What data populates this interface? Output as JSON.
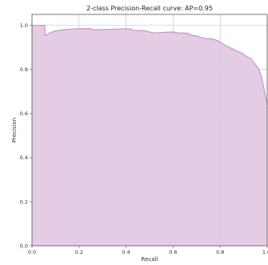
{
  "chart_data": {
    "type": "area",
    "title": "2-class Precision-Recall curve: AP=0.95",
    "xlabel": "Recall",
    "ylabel": "Precision",
    "xlim": [
      0.0,
      1.0
    ],
    "ylim": [
      0.0,
      1.05
    ],
    "x_ticks": [
      "0.0",
      "0.2",
      "0.4",
      "0.6",
      "0.8",
      "1.0"
    ],
    "y_ticks": [
      "0.0",
      "0.2",
      "0.4",
      "0.6",
      "0.8",
      "1.0"
    ],
    "grid": true,
    "fill_color": "#e3c9e3",
    "line_color": "#c994c9",
    "series": [
      {
        "points": [
          [
            0.0,
            1.0
          ],
          [
            0.055,
            1.0
          ],
          [
            0.055,
            0.955
          ],
          [
            0.065,
            0.96
          ],
          [
            0.08,
            0.968
          ],
          [
            0.1,
            0.975
          ],
          [
            0.13,
            0.98
          ],
          [
            0.16,
            0.983
          ],
          [
            0.2,
            0.985
          ],
          [
            0.25,
            0.986
          ],
          [
            0.255,
            0.98
          ],
          [
            0.3,
            0.981
          ],
          [
            0.35,
            0.983
          ],
          [
            0.4,
            0.985
          ],
          [
            0.42,
            0.984
          ],
          [
            0.43,
            0.978
          ],
          [
            0.48,
            0.976
          ],
          [
            0.5,
            0.97
          ],
          [
            0.52,
            0.966
          ],
          [
            0.55,
            0.968
          ],
          [
            0.6,
            0.97
          ],
          [
            0.62,
            0.966
          ],
          [
            0.66,
            0.965
          ],
          [
            0.68,
            0.955
          ],
          [
            0.7,
            0.952
          ],
          [
            0.72,
            0.945
          ],
          [
            0.74,
            0.94
          ],
          [
            0.76,
            0.94
          ],
          [
            0.78,
            0.935
          ],
          [
            0.8,
            0.925
          ],
          [
            0.82,
            0.91
          ],
          [
            0.84,
            0.9
          ],
          [
            0.86,
            0.89
          ],
          [
            0.88,
            0.88
          ],
          [
            0.9,
            0.87
          ],
          [
            0.91,
            0.86
          ],
          [
            0.93,
            0.85
          ],
          [
            0.945,
            0.83
          ],
          [
            0.955,
            0.815
          ],
          [
            0.965,
            0.8
          ],
          [
            0.975,
            0.77
          ],
          [
            0.985,
            0.72
          ],
          [
            0.993,
            0.68
          ],
          [
            1.0,
            0.64
          ]
        ]
      }
    ]
  }
}
